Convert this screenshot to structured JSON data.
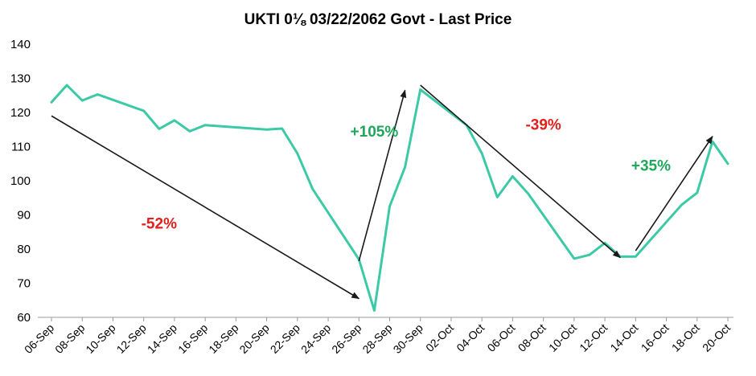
{
  "chart_data": {
    "type": "line",
    "title": "UKTI 0⅛ 03/22/2062  Govt - Last Price",
    "xlabel": "",
    "ylabel": "",
    "ylim": [
      60,
      140
    ],
    "yticks": [
      60,
      70,
      80,
      90,
      100,
      110,
      120,
      130,
      140
    ],
    "xticks": [
      "06-Sep",
      "08-Sep",
      "10-Sep",
      "12-Sep",
      "14-Sep",
      "16-Sep",
      "18-Sep",
      "20-Sep",
      "22-Sep",
      "24-Sep",
      "26-Sep",
      "28-Sep",
      "30-Sep",
      "02-Oct",
      "04-Oct",
      "06-Oct",
      "08-Oct",
      "10-Oct",
      "12-Oct",
      "14-Oct",
      "16-Oct",
      "18-Oct",
      "20-Oct"
    ],
    "grid": false,
    "line_color": "#3CC9A6",
    "series": [
      {
        "x": [
          "2022-09-06",
          "2022-09-07",
          "2022-09-08",
          "2022-09-09",
          "2022-09-12",
          "2022-09-13",
          "2022-09-14",
          "2022-09-15",
          "2022-09-16",
          "2022-09-20",
          "2022-09-21",
          "2022-09-22",
          "2022-09-23",
          "2022-09-26",
          "2022-09-27",
          "2022-09-28",
          "2022-09-29",
          "2022-09-30",
          "2022-10-03",
          "2022-10-04",
          "2022-10-05",
          "2022-10-06",
          "2022-10-07",
          "2022-10-10",
          "2022-10-11",
          "2022-10-12",
          "2022-10-13",
          "2022-10-14",
          "2022-10-17",
          "2022-10-18",
          "2022-10-19",
          "2022-10-20"
        ],
        "values": [
          123,
          128,
          123.5,
          125.3,
          120.5,
          115.2,
          117.7,
          114.5,
          116.3,
          115,
          115.3,
          108,
          97.5,
          77,
          62,
          92.5,
          104,
          126.7,
          116.3,
          108,
          95.2,
          101.3,
          96.3,
          77.2,
          78.3,
          81.8,
          77.8,
          77.8,
          93,
          96.5,
          111.5,
          105
        ]
      }
    ],
    "arrows": [
      {
        "from": [
          "2022-09-06",
          119
        ],
        "to": [
          "2022-09-26",
          65.5
        ]
      },
      {
        "from": [
          "2022-09-26",
          76.5
        ],
        "to": [
          "2022-09-29",
          126.5
        ]
      },
      {
        "from": [
          "2022-09-30",
          128
        ],
        "to": [
          "2022-10-13",
          77.5
        ]
      },
      {
        "from": [
          "2022-10-14",
          79.5
        ],
        "to": [
          "2022-10-19",
          113
        ]
      }
    ],
    "annotations": [
      {
        "text": "-52%",
        "x": "2022-09-13",
        "y": 86,
        "color": "#E0201C"
      },
      {
        "text": "+105%",
        "x": "2022-09-27",
        "y": 113,
        "color": "#1FA85A"
      },
      {
        "text": "-39%",
        "x": "2022-10-08",
        "y": 115,
        "color": "#E0201C"
      },
      {
        "text": "+35%",
        "x": "2022-10-15",
        "y": 103,
        "color": "#1FA85A"
      }
    ]
  }
}
